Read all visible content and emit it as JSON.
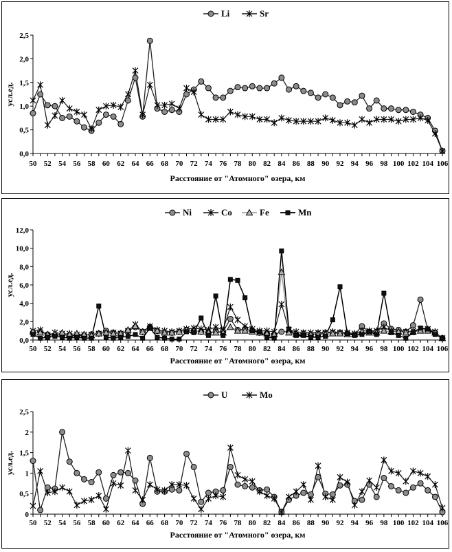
{
  "chart_data": [
    {
      "type": "line",
      "ylabel": "усл.ед.",
      "xlabel": "Расстояние от \"Атомного\" озера, км",
      "ylim": [
        0,
        2.5
      ],
      "yticks": [
        "0,0",
        "0,5",
        "1,0",
        "1,5",
        "2,0",
        "2,5"
      ],
      "xlim": [
        50,
        106
      ],
      "xticks": [
        "50",
        "52",
        "54",
        "56",
        "58",
        "60",
        "62",
        "64",
        "66",
        "68",
        "70",
        "72",
        "74",
        "76",
        "78",
        "80",
        "82",
        "84",
        "86",
        "88",
        "90",
        "92",
        "94",
        "96",
        "98",
        "100",
        "102",
        "104",
        "106"
      ],
      "legend_position": "top-center",
      "x": [
        50,
        51,
        52,
        53,
        54,
        55,
        56,
        57,
        58,
        59,
        60,
        61,
        62,
        63,
        64,
        65,
        66,
        67,
        68,
        69,
        70,
        71,
        72,
        73,
        74,
        75,
        76,
        77,
        78,
        79,
        80,
        81,
        82,
        83,
        84,
        85,
        86,
        87,
        88,
        89,
        90,
        91,
        92,
        93,
        94,
        95,
        96,
        97,
        98,
        99,
        100,
        101,
        102,
        103,
        104,
        105,
        106
      ],
      "series": [
        {
          "name": "Li",
          "marker": "circle",
          "values": [
            0.85,
            1.25,
            1.02,
            1.0,
            0.75,
            0.78,
            0.68,
            0.55,
            0.48,
            0.65,
            0.82,
            0.78,
            0.62,
            1.12,
            1.6,
            0.78,
            2.38,
            0.95,
            0.88,
            0.92,
            0.88,
            1.25,
            1.35,
            1.52,
            1.38,
            1.18,
            1.18,
            1.32,
            1.4,
            1.38,
            1.42,
            1.38,
            1.38,
            1.48,
            1.6,
            1.35,
            1.42,
            1.32,
            1.28,
            1.18,
            1.25,
            1.18,
            1.02,
            1.1,
            1.08,
            1.22,
            0.95,
            1.12,
            0.95,
            0.95,
            0.92,
            0.92,
            0.88,
            0.82,
            0.75,
            0.48,
            0.05
          ]
        },
        {
          "name": "Sr",
          "marker": "star",
          "values": [
            1.12,
            1.45,
            0.6,
            0.8,
            1.12,
            0.95,
            0.88,
            0.82,
            0.52,
            0.92,
            1.0,
            1.02,
            0.98,
            1.25,
            1.75,
            0.82,
            1.45,
            1.02,
            1.02,
            1.05,
            0.95,
            1.38,
            1.3,
            0.82,
            0.72,
            0.72,
            0.72,
            0.88,
            0.82,
            0.78,
            0.78,
            0.72,
            0.72,
            0.65,
            0.75,
            0.7,
            0.68,
            0.68,
            0.68,
            0.68,
            0.75,
            0.7,
            0.65,
            0.65,
            0.6,
            0.72,
            0.65,
            0.72,
            0.72,
            0.72,
            0.68,
            0.72,
            0.72,
            0.75,
            0.7,
            0.42,
            0.05
          ]
        }
      ]
    },
    {
      "type": "line",
      "ylabel": "усл.ед.",
      "xlabel": "Расстояние от \"Атомного\" озера, км",
      "ylim": [
        0,
        12
      ],
      "yticks": [
        "0,0",
        "2,0",
        "4,0",
        "6,0",
        "8,0",
        "10,0",
        "12,0"
      ],
      "xlim": [
        50,
        106
      ],
      "xticks": [
        "50",
        "52",
        "54",
        "56",
        "58",
        "60",
        "62",
        "64",
        "66",
        "68",
        "70",
        "72",
        "74",
        "76",
        "78",
        "80",
        "82",
        "84",
        "86",
        "88",
        "90",
        "92",
        "94",
        "96",
        "98",
        "100",
        "102",
        "104",
        "106"
      ],
      "legend_position": "top-center",
      "x": [
        50,
        51,
        52,
        53,
        54,
        55,
        56,
        57,
        58,
        59,
        60,
        61,
        62,
        63,
        64,
        65,
        66,
        67,
        68,
        69,
        70,
        71,
        72,
        73,
        74,
        75,
        76,
        77,
        78,
        79,
        80,
        81,
        82,
        83,
        84,
        85,
        86,
        87,
        88,
        89,
        90,
        91,
        92,
        93,
        94,
        95,
        96,
        97,
        98,
        99,
        100,
        101,
        102,
        103,
        104,
        105,
        106
      ],
      "series": [
        {
          "name": "Ni",
          "marker": "circle",
          "values": [
            0.8,
            0.9,
            0.6,
            0.5,
            0.6,
            0.5,
            0.5,
            0.5,
            0.6,
            0.7,
            1.0,
            0.8,
            0.7,
            1.0,
            1.4,
            0.9,
            1.4,
            1.0,
            0.8,
            0.8,
            0.9,
            1.1,
            1.0,
            0.9,
            0.8,
            0.9,
            0.9,
            2.3,
            1.1,
            1.2,
            1.0,
            0.8,
            0.7,
            0.6,
            0.9,
            0.9,
            0.6,
            0.7,
            0.6,
            0.7,
            0.8,
            0.8,
            0.8,
            0.7,
            0.6,
            1.5,
            0.9,
            0.9,
            1.8,
            1.2,
            1.1,
            0.9,
            1.6,
            4.4,
            1.1,
            0.8,
            0.2
          ]
        },
        {
          "name": "Co",
          "marker": "star",
          "values": [
            1.0,
            1.1,
            0.5,
            0.8,
            0.7,
            0.7,
            0.6,
            0.6,
            0.6,
            0.7,
            0.8,
            0.8,
            0.7,
            1.0,
            1.7,
            0.9,
            1.5,
            1.1,
            1.0,
            0.9,
            1.0,
            1.2,
            1.3,
            1.2,
            1.1,
            1.4,
            1.1,
            3.6,
            2.2,
            1.5,
            1.2,
            1.0,
            1.0,
            0.9,
            3.9,
            1.1,
            0.9,
            0.8,
            0.8,
            0.8,
            0.8,
            0.9,
            0.8,
            0.8,
            0.7,
            1.0,
            1.0,
            1.0,
            1.4,
            1.0,
            0.9,
            0.9,
            1.0,
            1.2,
            1.2,
            0.9,
            0.2
          ]
        },
        {
          "name": "Fe",
          "marker": "triangle",
          "values": [
            0.9,
            0.8,
            0.6,
            0.6,
            0.8,
            0.6,
            0.7,
            0.6,
            0.5,
            0.7,
            0.8,
            0.7,
            0.7,
            1.1,
            1.5,
            0.9,
            1.3,
            1.0,
            0.8,
            0.8,
            0.9,
            1.1,
            1.0,
            0.9,
            0.8,
            0.8,
            0.8,
            1.4,
            1.0,
            1.0,
            0.9,
            0.8,
            0.7,
            0.6,
            7.4,
            0.8,
            0.6,
            0.6,
            0.6,
            0.6,
            0.6,
            0.7,
            0.7,
            0.6,
            0.6,
            0.9,
            0.8,
            0.8,
            1.0,
            0.9,
            0.9,
            0.8,
            0.9,
            1.0,
            1.0,
            0.8,
            0.2
          ]
        },
        {
          "name": "Mn",
          "marker": "square",
          "values": [
            0.6,
            0.2,
            0.3,
            0.4,
            0.3,
            0.2,
            0.3,
            0.2,
            0.2,
            3.7,
            0.3,
            0.2,
            0.3,
            0.4,
            0.6,
            0.2,
            1.3,
            0.3,
            0.2,
            0.1,
            0.1,
            0.9,
            0.8,
            2.4,
            0.5,
            4.8,
            0.5,
            6.6,
            6.5,
            4.6,
            1.0,
            0.9,
            0.3,
            0.2,
            9.7,
            1.2,
            0.5,
            0.5,
            0.3,
            0.3,
            0.4,
            2.2,
            5.8,
            0.7,
            0.5,
            0.6,
            0.9,
            0.6,
            5.1,
            0.8,
            0.5,
            0.2,
            0.8,
            1.3,
            1.2,
            0.6,
            0.2
          ]
        }
      ]
    },
    {
      "type": "line",
      "ylabel": "усл.ед.",
      "xlabel": "Расстояние от \"Атомного\" озера, км",
      "ylim": [
        0,
        2.5
      ],
      "yticks": [
        "0",
        "0,5",
        "1",
        "1,5",
        "2",
        "2,5"
      ],
      "xlim": [
        50,
        106
      ],
      "xticks": [
        "50",
        "52",
        "54",
        "56",
        "58",
        "60",
        "62",
        "64",
        "66",
        "68",
        "70",
        "72",
        "74",
        "76",
        "78",
        "80",
        "82",
        "84",
        "86",
        "88",
        "90",
        "92",
        "94",
        "96",
        "98",
        "100",
        "102",
        "104",
        "106"
      ],
      "legend_position": "top-center",
      "x": [
        50,
        51,
        52,
        53,
        54,
        55,
        56,
        57,
        58,
        59,
        60,
        61,
        62,
        63,
        64,
        65,
        66,
        67,
        68,
        69,
        70,
        71,
        72,
        73,
        74,
        75,
        76,
        77,
        78,
        79,
        80,
        81,
        82,
        83,
        84,
        85,
        86,
        87,
        88,
        89,
        90,
        91,
        92,
        93,
        94,
        95,
        96,
        97,
        98,
        99,
        100,
        101,
        102,
        103,
        104,
        105,
        106
      ],
      "series": [
        {
          "name": "U",
          "marker": "circle",
          "values": [
            1.3,
            0.1,
            0.65,
            0.62,
            2.0,
            1.28,
            1.0,
            0.85,
            0.78,
            1.02,
            0.38,
            0.95,
            1.02,
            1.0,
            0.82,
            0.25,
            1.37,
            0.55,
            0.55,
            0.6,
            0.58,
            1.47,
            1.15,
            0.3,
            0.52,
            0.55,
            0.58,
            1.15,
            0.72,
            0.68,
            0.65,
            0.58,
            0.6,
            0.42,
            0.05,
            0.35,
            0.45,
            0.52,
            0.48,
            0.9,
            0.5,
            0.48,
            0.7,
            0.72,
            0.32,
            0.35,
            0.72,
            0.42,
            0.88,
            0.68,
            0.58,
            0.52,
            0.65,
            0.75,
            0.58,
            0.42,
            0.05
          ]
        },
        {
          "name": "Mo",
          "marker": "star",
          "values": [
            0.2,
            1.05,
            0.52,
            0.55,
            0.65,
            0.55,
            0.22,
            0.32,
            0.35,
            0.45,
            0.12,
            0.75,
            0.7,
            1.55,
            0.58,
            0.35,
            0.72,
            0.6,
            0.58,
            0.72,
            0.72,
            0.7,
            0.38,
            0.12,
            0.38,
            0.45,
            0.42,
            1.62,
            0.95,
            0.85,
            0.8,
            0.55,
            0.45,
            0.38,
            0.05,
            0.42,
            0.55,
            0.72,
            0.35,
            1.18,
            0.42,
            0.35,
            0.9,
            0.78,
            0.22,
            0.55,
            0.82,
            0.65,
            1.32,
            1.05,
            1.0,
            0.8,
            1.05,
            1.0,
            0.92,
            0.72,
            0.15
          ]
        }
      ]
    }
  ]
}
